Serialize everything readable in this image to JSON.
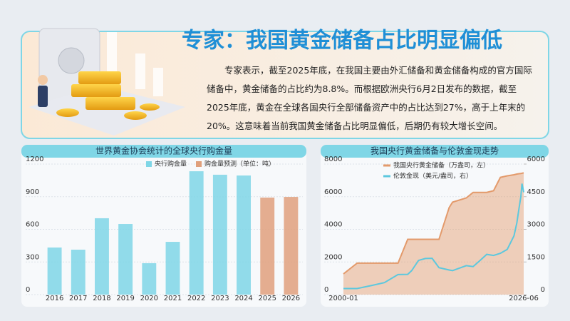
{
  "header": {
    "title": "专家：我国黄金储备占比明显偏低",
    "body": "专家表示，截至2025年底，在我国主要由外汇储备和黄金储备构成的官方国际储备中，黄金储备的占比约为8.8%。而根据欧洲央行6月2日发布的数据，截至2025年底，黄金在全球各国央行全部储备资产中的占比达到27%，高于上年末的20%。这意味着当前我国黄金储备占比明显偏低，后期仍有较大增长空间。"
  },
  "chart_data": [
    {
      "type": "bar",
      "title": "世界黄金协会统计的全球央行购金量",
      "categories": [
        "2016",
        "2017",
        "2018",
        "2019",
        "2020",
        "2021",
        "2022",
        "2023",
        "2024",
        "2025",
        "2026"
      ],
      "series": [
        {
          "name": "央行购金量",
          "color": "#7fd6e6",
          "values": [
            433,
            413,
            702,
            649,
            289,
            485,
            1134,
            1102,
            1095,
            null,
            null
          ]
        },
        {
          "name": "购金量预测（单位：吨）",
          "color": "#e0a07c",
          "values": [
            null,
            null,
            null,
            null,
            null,
            null,
            null,
            null,
            null,
            892,
            898
          ]
        }
      ],
      "ylim": [
        0,
        1200
      ],
      "yticks": [
        0,
        300,
        600,
        900,
        1200
      ],
      "grid": true
    },
    {
      "type": "line",
      "title": "我国央行黄金储备与伦敦金现走势",
      "x": [
        "2000-01",
        "2002-01",
        "2004-01",
        "2006-01",
        "2008-01",
        "2009-06",
        "2010-01",
        "2011-01",
        "2012-01",
        "2013-01",
        "2014-01",
        "2015-07",
        "2016-01",
        "2018-01",
        "2019-01",
        "2020-01",
        "2021-01",
        "2022-01",
        "2023-01",
        "2024-01",
        "2025-01",
        "2025-06",
        "2025-10",
        "2026-01",
        "2026-03",
        "2026-06"
      ],
      "xticks": [
        "2000-01",
        "2026-06"
      ],
      "series": [
        {
          "name": "我国央行黄金储备（万盎司，左）",
          "color": "#e39a6b",
          "values": [
            1267,
            1929,
            1929,
            1929,
            1929,
            3389,
            3389,
            3389,
            3389,
            3389,
            3389,
            5332,
            5666,
            5924,
            6264,
            6264,
            6264,
            6367,
            7187,
            7280,
            7345,
            7390,
            7409,
            7419,
            7438,
            7460
          ]
        },
        {
          "name": "伦敦金现（美元/盎司，右）",
          "color": "#5cc8de",
          "axis": "y2",
          "values": [
            280,
            280,
            410,
            550,
            920,
            930,
            1100,
            1570,
            1660,
            1670,
            1240,
            1130,
            1100,
            1330,
            1290,
            1560,
            1850,
            1800,
            1900,
            2080,
            2700,
            3300,
            4000,
            4500,
            5100,
            4700
          ]
        }
      ],
      "ylim": [
        0,
        8000
      ],
      "yticks": [
        0,
        2000,
        4000,
        6000,
        8000
      ],
      "y2lim": [
        0,
        6000
      ],
      "y2ticks": [
        0,
        1500,
        3000,
        4500,
        6000
      ]
    }
  ]
}
